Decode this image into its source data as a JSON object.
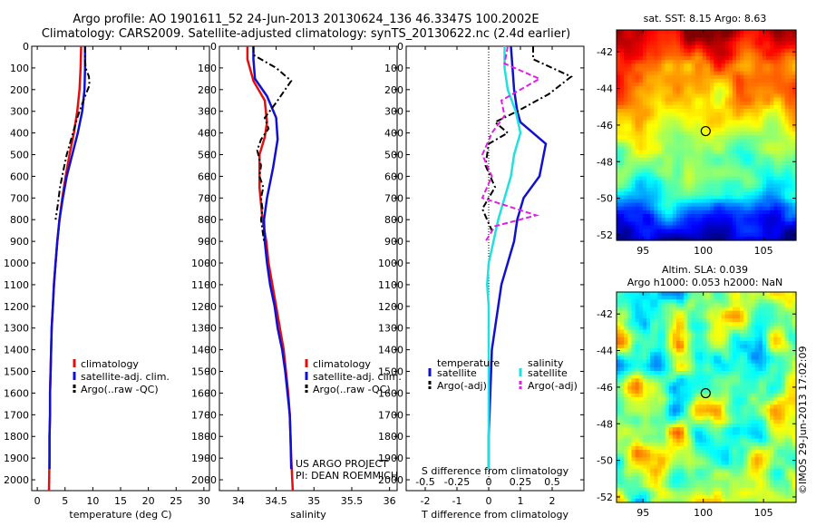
{
  "header": {
    "line1": "Argo profile: AO 1901611_52 24-Jun-2013 20130624_136 46.3347S 100.2002E",
    "line2": "Climatology: CARS2009. Satellite-adjusted climatology: synTS_20130622.nc (2.4d earlier)"
  },
  "project": {
    "line1": "US ARGO PROJECT",
    "line2": "PI: DEAN ROEMMICH"
  },
  "stamp": "©IMOS 29-Jun-2013 17:02:09",
  "colors": {
    "climatology": "#e01010",
    "satellite": "#1010d0",
    "argo": "#000000",
    "sat_salinity": "#20e0e0",
    "argo_salinity": "#e020e0"
  },
  "chart_data": [
    {
      "type": "line",
      "xlabel": "temperature (deg C)",
      "ylabel": "",
      "xlim": [
        -1,
        31
      ],
      "ylim": [
        2050,
        0
      ],
      "xticks": [
        0,
        5,
        10,
        15,
        20,
        25,
        30
      ],
      "yticks": [
        0,
        100,
        200,
        300,
        400,
        500,
        600,
        700,
        800,
        900,
        1000,
        1100,
        1200,
        1300,
        1400,
        1500,
        1600,
        1700,
        1800,
        1900,
        2000
      ],
      "legend": [
        "climatology",
        "satellite-adj. clim.",
        "Argo(..raw -QC)"
      ],
      "legend_position": "lower-center",
      "series": [
        {
          "name": "climatology",
          "style": "solid",
          "x": [
            7.9,
            7.8,
            7.6,
            7.2,
            6.6,
            5.8,
            5.1,
            4.5,
            4.0,
            3.6,
            3.3,
            3.0,
            2.8,
            2.6,
            2.5,
            2.4,
            2.3,
            2.3,
            2.2,
            2.2,
            2.1
          ],
          "y": [
            0,
            100,
            200,
            300,
            400,
            500,
            600,
            700,
            800,
            900,
            1000,
            1100,
            1200,
            1300,
            1400,
            1500,
            1600,
            1700,
            1800,
            1900,
            2050
          ]
        },
        {
          "name": "satellite-adj. clim.",
          "style": "solid",
          "x": [
            8.6,
            8.6,
            8.5,
            8.1,
            7.3,
            6.3,
            5.3,
            4.6,
            4.0,
            3.6,
            3.3,
            3.0,
            2.8,
            2.6,
            2.5,
            2.4,
            2.3,
            2.3,
            2.2,
            2.2
          ],
          "y": [
            0,
            100,
            200,
            300,
            400,
            500,
            600,
            700,
            800,
            900,
            1000,
            1100,
            1200,
            1300,
            1400,
            1500,
            1600,
            1700,
            1800,
            1950
          ]
        },
        {
          "name": "Argo(..raw -QC)",
          "style": "dashdot",
          "x": [
            8.6,
            8.6,
            8.7,
            9.3,
            9.4,
            8.3,
            7.2,
            6.2,
            5.3,
            4.8,
            4.1,
            3.7,
            3.3
          ],
          "y": [
            0,
            60,
            100,
            140,
            180,
            250,
            330,
            420,
            500,
            560,
            650,
            730,
            800
          ]
        }
      ]
    },
    {
      "type": "line",
      "xlabel": "salinity",
      "ylabel": "",
      "xlim": [
        33.75,
        36.1
      ],
      "ylim": [
        2050,
        0
      ],
      "xticks": [
        34,
        34.5,
        35,
        35.5,
        36
      ],
      "legend": [
        "climatology",
        "satellite-adj. clim.",
        "Argo(..raw -QC)"
      ],
      "legend_position": "lower-right",
      "series": [
        {
          "name": "climatology",
          "style": "solid",
          "x": [
            34.12,
            34.12,
            34.2,
            34.35,
            34.38,
            34.35,
            34.28,
            34.28,
            34.32,
            34.37,
            34.4,
            34.45,
            34.5,
            34.55,
            34.6,
            34.63,
            34.66,
            34.68,
            34.69,
            34.7,
            34.72
          ],
          "y": [
            0,
            60,
            160,
            250,
            350,
            420,
            500,
            650,
            800,
            900,
            1000,
            1100,
            1200,
            1300,
            1400,
            1500,
            1600,
            1700,
            1800,
            1900,
            2050
          ]
        },
        {
          "name": "satellite-adj. clim.",
          "style": "solid",
          "x": [
            34.2,
            34.2,
            34.22,
            34.38,
            34.5,
            34.52,
            34.46,
            34.38,
            34.34,
            34.35,
            34.38,
            34.42,
            34.48,
            34.52,
            34.58,
            34.62,
            34.65,
            34.68,
            34.69,
            34.7
          ],
          "y": [
            0,
            60,
            150,
            230,
            330,
            430,
            560,
            700,
            800,
            900,
            1000,
            1100,
            1200,
            1300,
            1400,
            1500,
            1600,
            1700,
            1800,
            1950
          ]
        },
        {
          "name": "Argo(..raw -QC)",
          "style": "dashdot",
          "x": [
            34.2,
            34.2,
            34.5,
            34.7,
            34.5,
            34.35,
            34.4,
            34.3,
            34.25,
            34.3,
            34.28,
            34.33,
            34.3,
            34.32,
            34.3,
            34.34
          ],
          "y": [
            0,
            40,
            100,
            160,
            260,
            330,
            380,
            430,
            480,
            550,
            600,
            650,
            700,
            750,
            800,
            900
          ]
        }
      ]
    },
    {
      "type": "line",
      "xlabel": "T difference from climatology",
      "xlabel_top": "S difference from climatology",
      "ylabel": "",
      "xlim": [
        -2.6,
        3.0
      ],
      "ylim": [
        2050,
        0
      ],
      "xticks": [
        -2,
        -1,
        0,
        1,
        2
      ],
      "xticks_top": [
        -0.5,
        -0.25,
        0,
        0.25,
        0.5
      ],
      "legend_groups": [
        {
          "title": "temperature",
          "entries": [
            "satellite",
            "Argo(-adj)"
          ]
        },
        {
          "title": "salinity",
          "entries": [
            "satellite",
            "Argo(-adj)"
          ]
        }
      ],
      "legend_position": "lower-center",
      "series": [
        {
          "name": "satellite",
          "group": "temperature",
          "style": "solid",
          "x": [
            0.7,
            0.75,
            0.8,
            0.9,
            1.0,
            1.8,
            1.6,
            1.1,
            0.9,
            0.8,
            0.6,
            0.4,
            0.3,
            0.2,
            0.1,
            0.05,
            0.0,
            0.0
          ],
          "y": [
            0,
            100,
            200,
            300,
            350,
            450,
            600,
            700,
            800,
            900,
            1000,
            1100,
            1200,
            1300,
            1400,
            1600,
            1800,
            1950
          ]
        },
        {
          "name": "Argo(-adj)",
          "group": "temperature",
          "style": "dashdot",
          "x": [
            1.4,
            1.4,
            2.6,
            1.9,
            0.9,
            0.2,
            0.6,
            0.0,
            -0.1,
            0.2,
            -0.2,
            0.1
          ],
          "y": [
            0,
            60,
            140,
            220,
            300,
            350,
            400,
            450,
            550,
            650,
            750,
            850
          ]
        },
        {
          "name": "satellite",
          "group": "salinity",
          "style": "solid",
          "x": [
            0.5,
            0.5,
            0.6,
            0.85,
            1.0,
            0.8,
            0.7,
            0.5,
            0.3,
            0.15,
            0.0,
            -0.05,
            0.0,
            0.0,
            0.0,
            0.0,
            0.0
          ],
          "y": [
            0,
            100,
            200,
            300,
            400,
            500,
            600,
            700,
            800,
            900,
            1000,
            1100,
            1200,
            1400,
            1600,
            1800,
            1950
          ]
        },
        {
          "name": "Argo(-adj)",
          "group": "salinity",
          "style": "dashed",
          "x": [
            0.6,
            0.5,
            1.6,
            0.4,
            0.5,
            0.1,
            -0.2,
            0.1,
            -0.2,
            1.5,
            0.2,
            -0.1
          ],
          "y": [
            0,
            80,
            150,
            250,
            320,
            400,
            500,
            600,
            700,
            780,
            830,
            900
          ]
        }
      ]
    },
    {
      "type": "heatmap",
      "title": "sat. SST: 8.15 Argo: 8.63",
      "xticks": [
        95,
        100,
        105
      ],
      "yticks": [
        -42,
        -44,
        -46,
        -48,
        -50,
        -52
      ],
      "xlim": [
        92.8,
        107.7
      ],
      "ylim": [
        -52.3,
        -40.8
      ],
      "marker": {
        "x": 100.2,
        "y": -46.33
      },
      "colormap": "jet"
    },
    {
      "type": "heatmap",
      "title": "Altim. SLA: 0.039",
      "subtitle": "Argo h1000: 0.053 h2000: NaN",
      "xticks": [
        95,
        100,
        105
      ],
      "yticks": [
        -42,
        -44,
        -46,
        -48,
        -50,
        -52
      ],
      "xlim": [
        92.8,
        107.7
      ],
      "ylim": [
        -52.3,
        -40.8
      ],
      "marker": {
        "x": 100.2,
        "y": -46.33
      },
      "colormap": "jet"
    }
  ]
}
